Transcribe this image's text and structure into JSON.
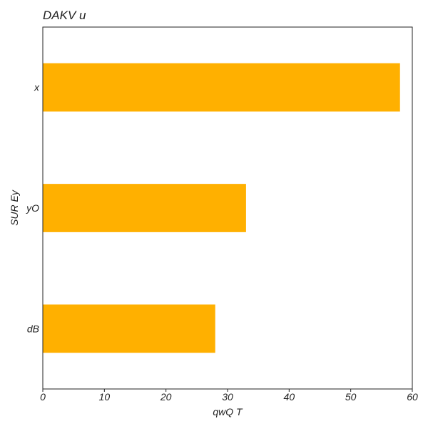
{
  "chart_data": {
    "type": "bar",
    "orientation": "horizontal",
    "title": "DAKV u",
    "xlabel": "qwQ T",
    "ylabel": "SUR Ey",
    "categories": [
      "x",
      "yO",
      "dB"
    ],
    "values": [
      58,
      33,
      28
    ],
    "xlim": [
      0,
      60
    ],
    "xticks": [
      0,
      10,
      20,
      30,
      40,
      50,
      60
    ],
    "grid": false,
    "bar_color": "#FFB000"
  }
}
